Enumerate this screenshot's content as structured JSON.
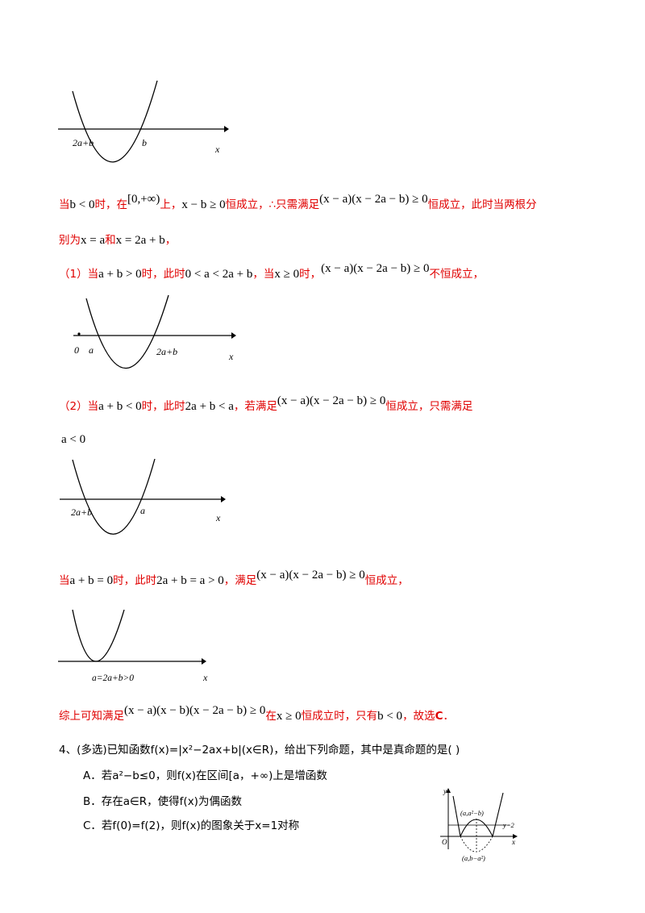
{
  "graph1": {
    "label_left": "2a+b",
    "label_right": "b",
    "axis": "x"
  },
  "para1": {
    "t1": "当",
    "m1": "b < 0",
    "t2": "时，在",
    "m2": "[0,+∞)",
    "t3": "上，",
    "m3": "x − b ≥ 0",
    "t4": "恒成立，∴只需满足",
    "m4": "(x − a)(x − 2a − b) ≥ 0",
    "t5": "恒成立，此时当两根分"
  },
  "para1b": {
    "t1": "别为",
    "m1": "x = a",
    "t2": "和",
    "m2": "x = 2a + b",
    "t3": "，"
  },
  "case1": {
    "t1": "（1）当",
    "m1": "a + b > 0",
    "t2": "时，此时",
    "m2": "0 < a < 2a + b",
    "t3": "，当",
    "m3": "x ≥ 0",
    "t4": "时，",
    "m4": "(x − a)(x − 2a − b) ≥ 0",
    "t5": "不恒成立，"
  },
  "graph2": {
    "label_origin": "0",
    "label_left": "a",
    "label_right": "2a+b",
    "axis": "x"
  },
  "case2": {
    "t1": "（2）当",
    "m1": "a + b < 0",
    "t2": "时，此时",
    "m2": "2a + b < a",
    "t3": "，若满足",
    "m3": "(x − a)(x − 2a − b) ≥ 0",
    "t4": "恒成立，只需满足"
  },
  "case2b": {
    "m1": "a < 0"
  },
  "graph3": {
    "label_left": "2a+b",
    "label_right": "a",
    "axis": "x"
  },
  "case3": {
    "t1": "当",
    "m1": "a + b = 0",
    "t2": "时，此时",
    "m2": "2a + b = a > 0",
    "t3": "，满足",
    "m3": "(x − a)(x − 2a − b) ≥ 0",
    "t4": "恒成立，"
  },
  "graph4": {
    "label": "a=2a+b>0",
    "axis": "x"
  },
  "summary": {
    "t1": "综上可知满足",
    "m1": "(x − a)(x − b)(x − 2a − b) ≥ 0",
    "t2": "在",
    "m2": "x ≥ 0",
    "t3": "恒成立时，只有",
    "m3": "b < 0",
    "t4": "，故选",
    "t5": "C",
    "t6": "．"
  },
  "question4": {
    "stem": "4、(多选)已知函数f(x)=|x²−2ax+b|(x∈R)，给出下列命题，其中是真命题的是(      )",
    "options": [
      "A．若a²−b≤0，则f(x)在区间[a，+∞)上是增函数",
      "B．存在a∈R，使得f(x)为偶函数",
      "C．若f(0)=f(2)，则f(x)的图象关于x=1对称"
    ]
  },
  "figure": {
    "y": "y",
    "x": "x",
    "origin": "O",
    "top_label": "(a,a²−b)",
    "line_label": "y=2",
    "bottom_label": "(a,b−a²)"
  },
  "colors": {
    "red": "#e00000",
    "black": "#000000"
  }
}
